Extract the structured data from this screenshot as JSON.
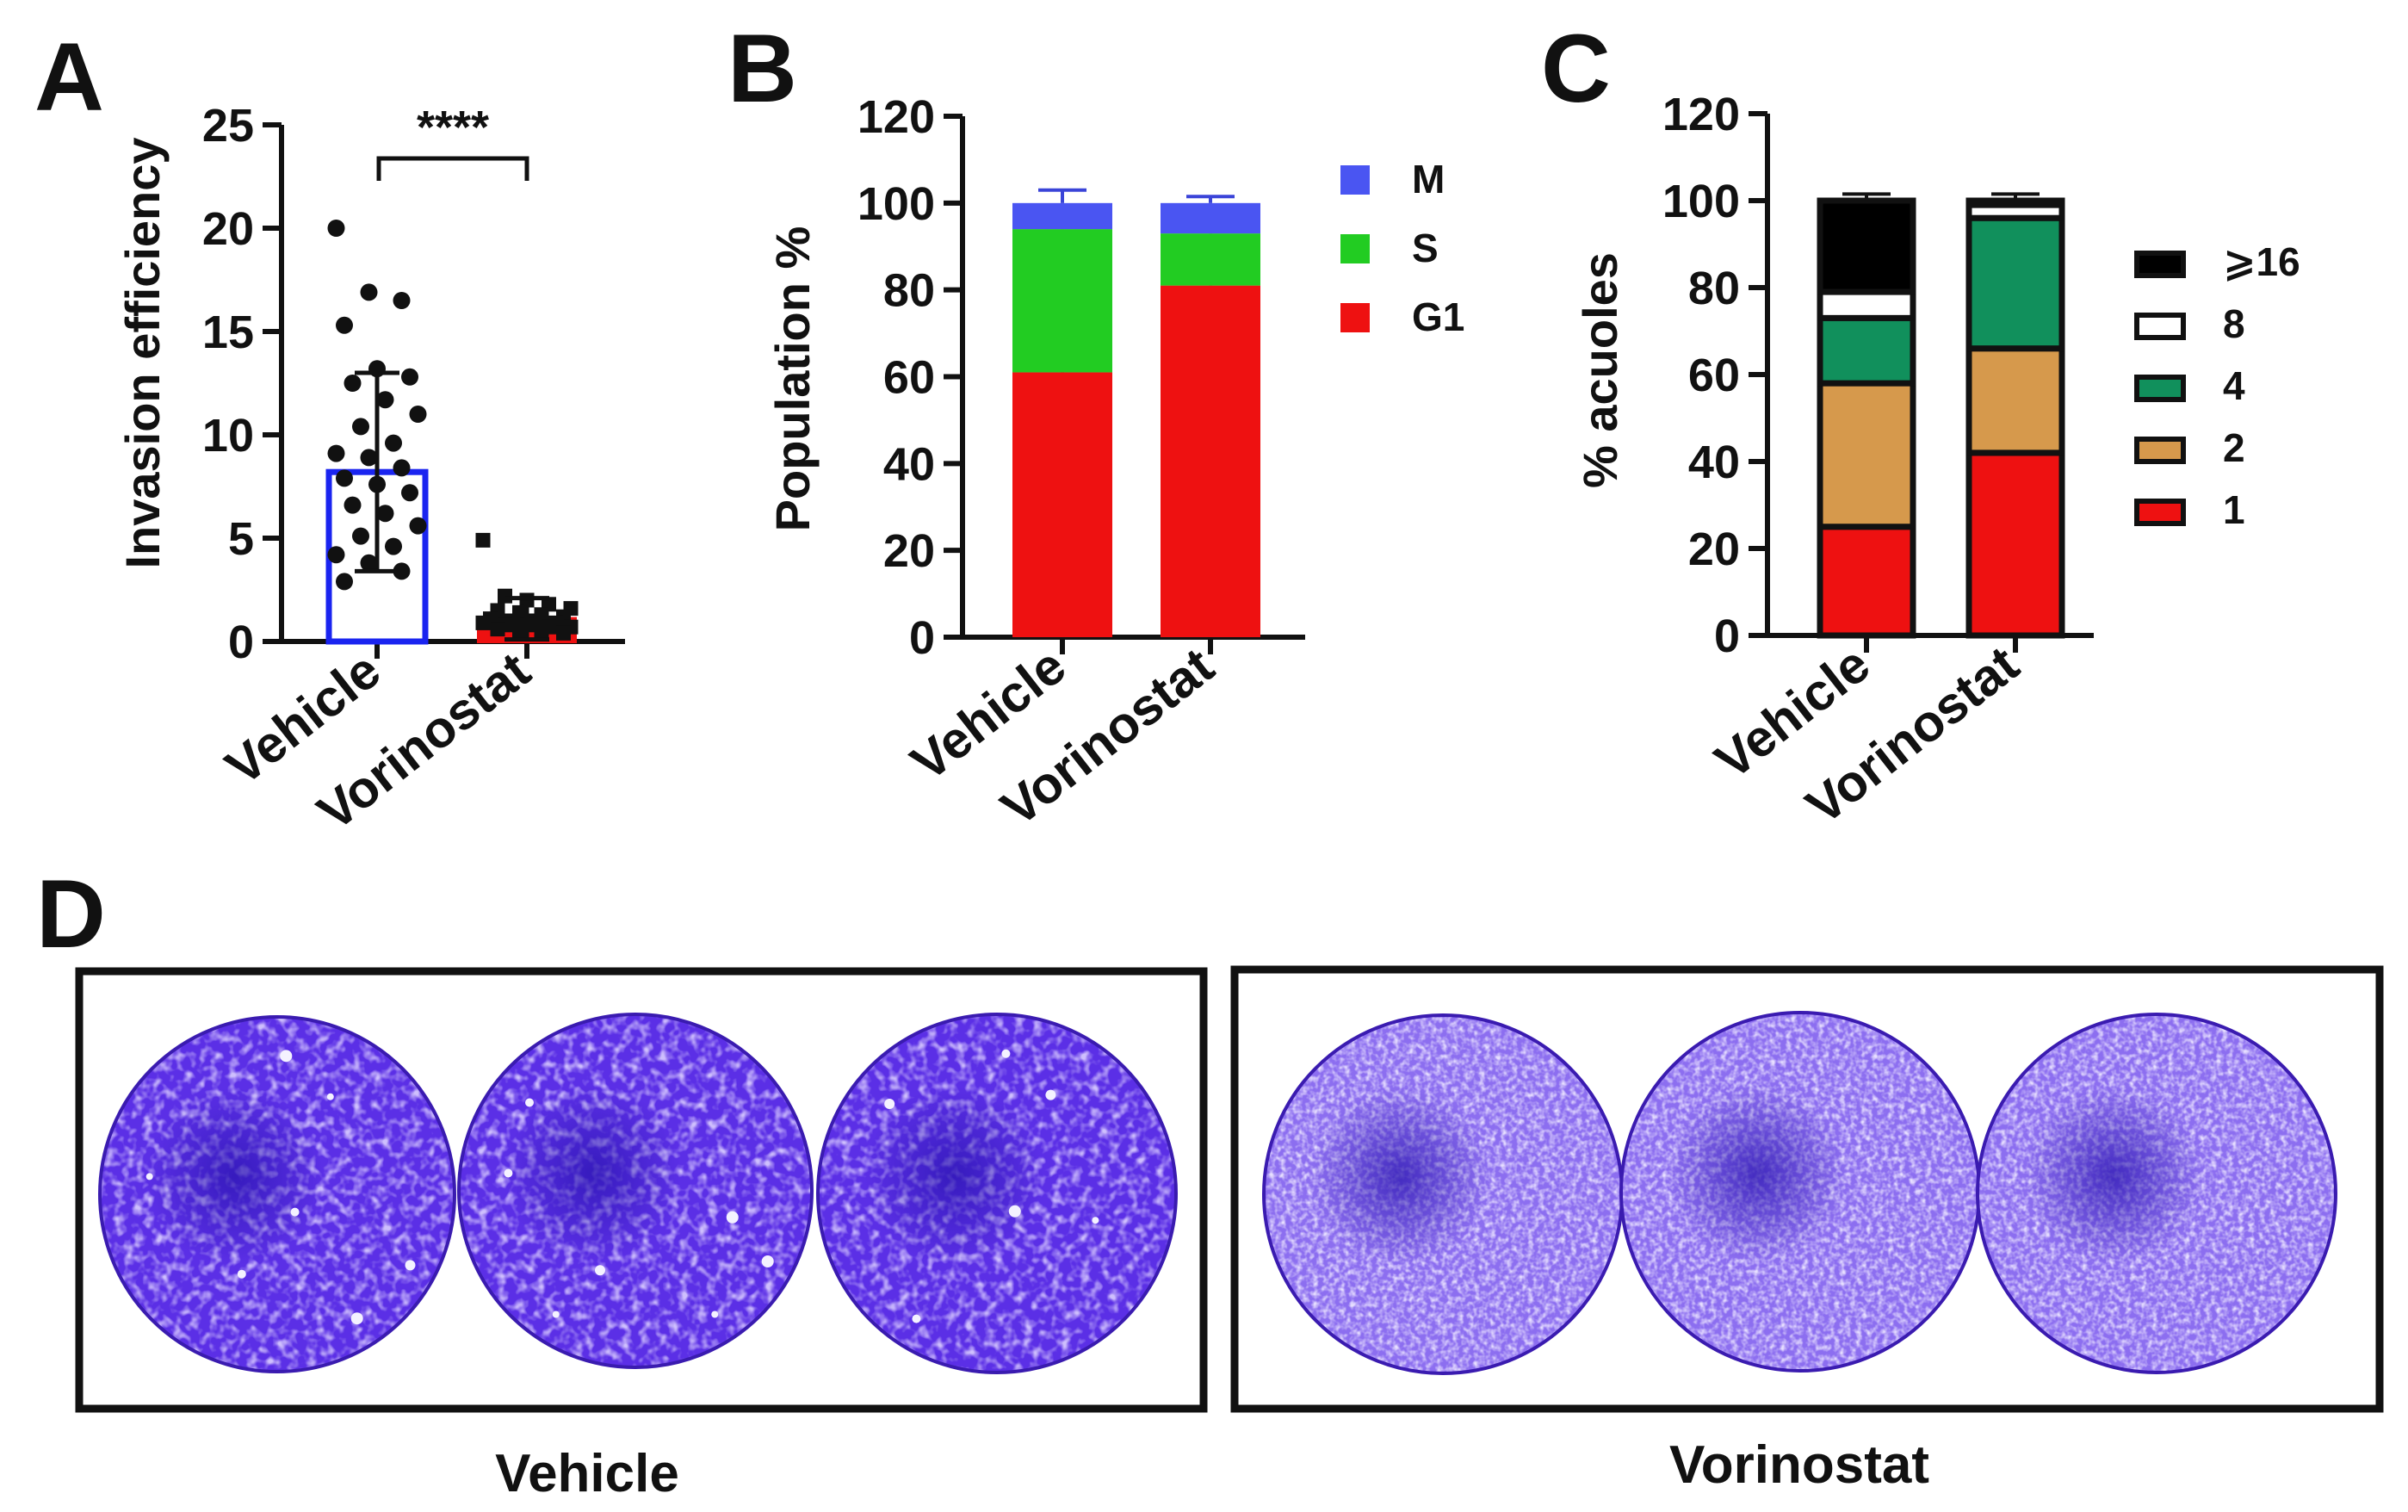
{
  "colors": {
    "axis": "#111111",
    "vehicle_edge": "#1a24f0",
    "vorinostat_fill": "#ee1111",
    "M": "#4a55f2",
    "S": "#22cc22",
    "G1": "#ee1111",
    "errbar_S": "#22aa22",
    "v16": "#000000",
    "v8": "#ffffff",
    "v4": "#11905c",
    "v2": "#d6994c",
    "v1": "#ee1111",
    "plate_bg": "#5a2ee0",
    "plate_light": "#8e74f0"
  },
  "chart_data": [
    {
      "panel": "A",
      "type": "scatter",
      "title": "****",
      "ylabel": "Invasion efficiency",
      "ylim": [
        0,
        25
      ],
      "yticks": [
        "0",
        "5",
        "10",
        "15",
        "20",
        "25"
      ],
      "categories": [
        "Vehicle",
        "Vorinostat"
      ],
      "means": [
        8.2,
        1.1
      ],
      "sd": [
        4.8,
        1.0
      ],
      "points": [
        [
          20.0,
          16.9,
          16.5,
          15.3,
          13.2,
          12.8,
          12.5,
          11.7,
          11.0,
          10.4,
          9.6,
          9.1,
          8.9,
          8.4,
          7.9,
          7.6,
          7.2,
          6.6,
          6.2,
          5.6,
          5.1,
          4.6,
          4.2,
          3.8,
          3.4,
          2.9
        ],
        [
          4.9,
          2.2,
          2.0,
          1.8,
          1.6,
          1.5,
          1.4,
          1.3,
          1.2,
          1.1,
          1.0,
          1.0,
          0.9,
          0.9,
          0.8,
          0.8,
          0.7,
          0.7,
          0.6,
          0.5,
          0.5,
          0.4
        ]
      ]
    },
    {
      "panel": "B",
      "type": "bar",
      "stacked": true,
      "ylabel": "Population %",
      "ylim": [
        0,
        120
      ],
      "yticks": [
        "0",
        "20",
        "40",
        "60",
        "80",
        "100",
        "120"
      ],
      "categories": [
        "Vehicle",
        "Vorinostat"
      ],
      "series": [
        {
          "name": "G1",
          "values": [
            61,
            81
          ],
          "err": [
            7,
            3
          ]
        },
        {
          "name": "S",
          "values": [
            33,
            12
          ],
          "err": [
            4,
            3
          ]
        },
        {
          "name": "M",
          "values": [
            6,
            7
          ],
          "err": [
            3,
            1.5
          ]
        }
      ],
      "legend": [
        "M",
        "S",
        "G1"
      ]
    },
    {
      "panel": "C",
      "type": "bar",
      "stacked": true,
      "ylabel": "% acuoles",
      "ylim": [
        0,
        120
      ],
      "yticks": [
        "0",
        "20",
        "40",
        "60",
        "80",
        "100",
        "120"
      ],
      "categories": [
        "Vehicle",
        "Vorinostat"
      ],
      "series": [
        {
          "name": "1",
          "values": [
            25,
            42
          ],
          "err": [
            3,
            6
          ]
        },
        {
          "name": "2",
          "values": [
            33,
            24
          ],
          "err": [
            5,
            2
          ]
        },
        {
          "name": "4",
          "values": [
            15,
            30
          ],
          "err": [
            4,
            1.5
          ]
        },
        {
          "name": "8",
          "values": [
            6,
            3
          ],
          "err": [
            2,
            1
          ]
        },
        {
          "name": "⩾16",
          "values": [
            21,
            1
          ],
          "err": [
            1.5,
            1.5
          ]
        }
      ],
      "legend": [
        "⩾16",
        "8",
        "4",
        "2",
        "1"
      ]
    }
  ],
  "panel_d": {
    "label": "D",
    "groups": [
      "Vehicle",
      "Vorinostat"
    ]
  }
}
